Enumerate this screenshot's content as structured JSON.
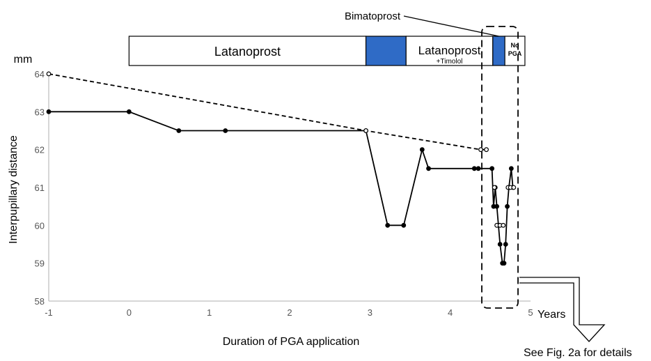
{
  "chart_data": {
    "type": "line",
    "xlabel": "Duration of PGA application",
    "ylabel": "Interpupillary distance",
    "y_unit": "mm",
    "x_unit": "Years",
    "xlim": [
      -1,
      5
    ],
    "ylim": [
      58,
      64
    ],
    "x_ticks": [
      "-1",
      "0",
      "1",
      "2",
      "3",
      "4",
      "5"
    ],
    "y_ticks": [
      "58",
      "59",
      "60",
      "61",
      "62",
      "63",
      "64"
    ],
    "grid": false,
    "series": [
      {
        "style": "solid line, filled circle markers",
        "color": "#000000",
        "points": [
          [
            -1,
            63
          ],
          [
            0,
            63
          ],
          [
            0.62,
            62.5
          ],
          [
            1.2,
            62.5
          ],
          [
            2.95,
            62.5
          ],
          [
            3.22,
            60
          ],
          [
            3.42,
            60
          ],
          [
            3.65,
            62
          ],
          [
            3.73,
            61.5
          ],
          [
            4.3,
            61.5
          ],
          [
            4.35,
            61.5
          ],
          [
            4.52,
            61.5
          ],
          [
            4.54,
            60.5
          ],
          [
            4.56,
            61
          ],
          [
            4.58,
            60.5
          ],
          [
            4.6,
            60
          ],
          [
            4.62,
            59.5
          ],
          [
            4.65,
            59
          ],
          [
            4.67,
            59
          ],
          [
            4.69,
            59.5
          ],
          [
            4.71,
            60.5
          ],
          [
            4.73,
            61
          ],
          [
            4.76,
            61.5
          ],
          [
            4.78,
            61
          ]
        ]
      },
      {
        "style": "dashed line, open circle markers",
        "color": "#000000",
        "points": [
          [
            -1,
            64
          ],
          [
            2.95,
            62.5
          ],
          [
            4.38,
            62
          ],
          [
            4.45,
            62
          ]
        ]
      },
      {
        "style": "open circle markers, no line",
        "color": "#000000",
        "points": [
          [
            4.55,
            61
          ],
          [
            4.58,
            60
          ],
          [
            4.62,
            60
          ],
          [
            4.66,
            60
          ],
          [
            4.72,
            61
          ],
          [
            4.75,
            61
          ],
          [
            4.79,
            61
          ]
        ]
      }
    ],
    "treatment_bar": [
      {
        "label": "Latanoprost",
        "start": 0,
        "end": 2.95,
        "color": "#ffffff"
      },
      {
        "label": "",
        "start": 2.95,
        "end": 3.45,
        "color": "#2f6bc6"
      },
      {
        "label": "Latanoprost",
        "sublabel": "+Timolol",
        "start": 3.45,
        "end": 4.53,
        "color": "#ffffff"
      },
      {
        "label": "",
        "start": 4.53,
        "end": 4.68,
        "color": "#2f6bc6"
      },
      {
        "label": "No",
        "sublabel": "PGA",
        "start": 4.68,
        "end": 4.93,
        "color": "#ffffff"
      }
    ],
    "annotations": {
      "bimatoprost_label": "Bimatoprost",
      "callout_text": "See Fig. 2a for details"
    }
  }
}
